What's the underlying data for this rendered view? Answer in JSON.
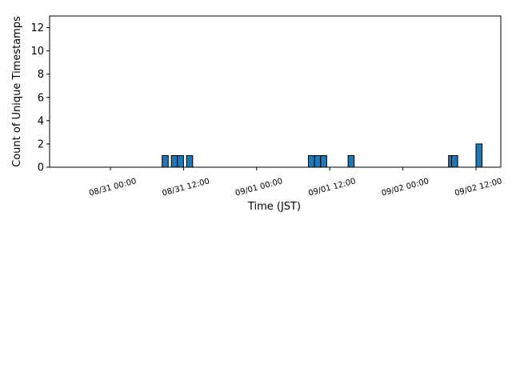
{
  "chart_data": {
    "type": "bar",
    "xlabel": "Time (JST)",
    "ylabel": "Count of Unique Timestamps",
    "ylim": [
      0,
      13
    ],
    "yticks": [
      0,
      2,
      4,
      6,
      8,
      10,
      12
    ],
    "x_tick_labels": [
      "08/31 00:00",
      "08/31 12:00",
      "09/01 00:00",
      "09/01 12:00",
      "09/02 00:00",
      "09/02 12:00"
    ],
    "x_range": [
      "08/30 12:00",
      "09/02 14:00"
    ],
    "bin_hours": 1,
    "bar_color": "#1f77b4",
    "edge_color": "#000000",
    "bars": [
      {
        "x": "08/31 09:00",
        "value": 1
      },
      {
        "x": "08/31 10:30",
        "value": 1
      },
      {
        "x": "08/31 11:30",
        "value": 1
      },
      {
        "x": "08/31 13:00",
        "value": 1
      },
      {
        "x": "09/01 09:00",
        "value": 1
      },
      {
        "x": "09/01 10:00",
        "value": 1
      },
      {
        "x": "09/01 11:00",
        "value": 1
      },
      {
        "x": "09/01 15:30",
        "value": 1
      },
      {
        "x": "09/02 08:00",
        "value": 1
      },
      {
        "x": "09/02 08:30",
        "value": 1
      },
      {
        "x": "09/02 12:30",
        "value": 2
      }
    ]
  }
}
